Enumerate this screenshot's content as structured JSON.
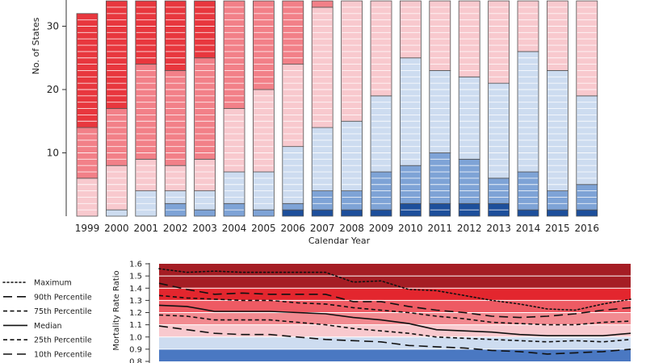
{
  "chart_data": [
    {
      "type": "bar",
      "stacked": true,
      "xlabel": "Calendar Year",
      "ylabel": "No. of States",
      "yticks": [
        10,
        20,
        30
      ],
      "ylim": [
        0,
        34
      ],
      "categories": [
        "1999",
        "2000",
        "2001",
        "2002",
        "2003",
        "2004",
        "2005",
        "2006",
        "2007",
        "2008",
        "2009",
        "2010",
        "2011",
        "2012",
        "2013",
        "2014",
        "2015",
        "2016"
      ],
      "colors": [
        "#1d4f9b",
        "#7ea3d6",
        "#cddcf0",
        "#f8c9ce",
        "#f28088",
        "#e8373e"
      ],
      "stacks": [
        [
          0,
          0,
          0,
          6,
          8,
          18
        ],
        [
          0,
          0,
          1,
          7,
          9,
          17
        ],
        [
          0,
          0,
          4,
          5,
          15,
          10
        ],
        [
          0,
          2,
          2,
          4,
          15,
          11
        ],
        [
          0,
          1,
          3,
          5,
          16,
          9
        ],
        [
          0,
          2,
          5,
          10,
          17,
          0
        ],
        [
          0,
          1,
          6,
          13,
          14,
          0
        ],
        [
          1,
          1,
          9,
          13,
          10,
          0
        ],
        [
          1,
          3,
          10,
          19,
          1,
          0
        ],
        [
          1,
          3,
          11,
          19,
          0,
          0
        ],
        [
          1,
          6,
          12,
          15,
          0,
          0
        ],
        [
          2,
          6,
          17,
          9,
          0,
          0
        ],
        [
          2,
          8,
          13,
          11,
          0,
          0
        ],
        [
          2,
          7,
          13,
          12,
          0,
          0
        ],
        [
          2,
          4,
          15,
          13,
          0,
          0
        ],
        [
          1,
          6,
          19,
          8,
          0,
          0
        ],
        [
          1,
          3,
          19,
          11,
          0,
          0
        ],
        [
          1,
          4,
          14,
          15,
          0,
          0
        ]
      ]
    },
    {
      "type": "line",
      "ylabel": "Mortality Rate Ratio",
      "yticks": [
        "0.8",
        "0.9",
        "1.0",
        "1.1",
        "1.2",
        "1.3",
        "1.4",
        "1.5",
        "1.6"
      ],
      "ylim": [
        0.8,
        1.6
      ],
      "x": [
        "1999",
        "2000",
        "2001",
        "2002",
        "2003",
        "2004",
        "2005",
        "2006",
        "2007",
        "2008",
        "2009",
        "2010",
        "2011",
        "2012",
        "2013",
        "2014",
        "2015",
        "2016"
      ],
      "bands": [
        {
          "from": 0.8,
          "to": 0.9,
          "color": "#4a78c2"
        },
        {
          "from": 0.9,
          "to": 1.0,
          "color": "#cddcf0"
        },
        {
          "from": 1.0,
          "to": 1.1,
          "color": "#f8c9ce"
        },
        {
          "from": 1.1,
          "to": 1.2,
          "color": "#f28a90"
        },
        {
          "from": 1.2,
          "to": 1.3,
          "color": "#ee5a63"
        },
        {
          "from": 1.3,
          "to": 1.4,
          "color": "#e3262e"
        },
        {
          "from": 1.4,
          "to": 1.6,
          "color": "#a51d24"
        }
      ],
      "series": [
        {
          "name": "Maximum",
          "dash": "dotted",
          "values": [
            1.56,
            1.53,
            1.54,
            1.53,
            1.53,
            1.53,
            1.53,
            1.45,
            1.46,
            1.39,
            1.38,
            1.34,
            1.3,
            1.27,
            1.23,
            1.22,
            1.27,
            1.31
          ]
        },
        {
          "name": "90th Percentile",
          "dash": "long",
          "values": [
            1.44,
            1.39,
            1.35,
            1.36,
            1.35,
            1.35,
            1.35,
            1.29,
            1.29,
            1.25,
            1.22,
            1.2,
            1.17,
            1.16,
            1.17,
            1.19,
            1.22,
            1.24
          ]
        },
        {
          "name": "75th Percentile",
          "dash": "short",
          "values": [
            1.34,
            1.32,
            1.31,
            1.3,
            1.3,
            1.28,
            1.27,
            1.24,
            1.22,
            1.2,
            1.17,
            1.15,
            1.12,
            1.11,
            1.1,
            1.1,
            1.12,
            1.13
          ]
        },
        {
          "name": "Median",
          "dash": "solid",
          "values": [
            1.26,
            1.25,
            1.21,
            1.21,
            1.21,
            1.2,
            1.19,
            1.16,
            1.14,
            1.11,
            1.06,
            1.05,
            1.04,
            1.02,
            1.01,
            1.01,
            1.01,
            1.03
          ]
        },
        {
          "name": "25th Percentile",
          "dash": "short",
          "values": [
            1.18,
            1.17,
            1.14,
            1.14,
            1.14,
            1.12,
            1.1,
            1.07,
            1.05,
            1.03,
            1.0,
            0.99,
            0.98,
            0.97,
            0.96,
            0.97,
            0.96,
            0.98
          ]
        },
        {
          "name": "10th Percentile",
          "dash": "long",
          "values": [
            1.09,
            1.06,
            1.03,
            1.02,
            1.02,
            1.0,
            0.98,
            0.97,
            0.96,
            0.93,
            0.92,
            0.91,
            0.89,
            0.88,
            0.86,
            0.87,
            0.88,
            0.9
          ]
        }
      ]
    }
  ]
}
